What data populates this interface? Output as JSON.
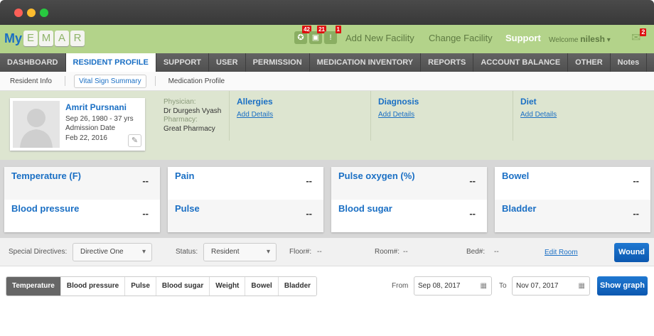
{
  "window": {
    "controls": [
      "close",
      "minimize",
      "maximize"
    ]
  },
  "header": {
    "logo_my": "My",
    "logo_letters": [
      "E",
      "M",
      "A",
      "R"
    ],
    "icons": [
      {
        "name": "runner-icon",
        "badge": "42"
      },
      {
        "name": "box-icon",
        "badge": "21"
      },
      {
        "name": "alert-list-icon",
        "badge": "1"
      }
    ],
    "add_facility": "Add New Facility",
    "change_facility": "Change Facility",
    "support": "Support",
    "welcome": "Welcome",
    "user": "nilesh",
    "mail_badge": "2"
  },
  "nav": [
    "DASHBOARD",
    "RESIDENT PROFILE",
    "SUPPORT",
    "USER",
    "PERMISSION",
    "MEDICATION INVENTORY",
    "REPORTS",
    "ACCOUNT BALANCE",
    "OTHER",
    "Notes"
  ],
  "subnav": [
    "Resident Info",
    "Vital Sign Summary",
    "Medication Profile"
  ],
  "resident": {
    "name": "Amrit Pursnani",
    "dob": "Sep 26, 1980 - 37 yrs",
    "admission_label": "Admission Date",
    "admission": "Feb 22, 2016",
    "physician_label": "Physician:",
    "physician": "Dr Durgesh Vyash",
    "pharmacy_label": "Pharmacy:",
    "pharmacy": "Great Pharmacy"
  },
  "sections": [
    {
      "title": "Allergies",
      "link": "Add Details"
    },
    {
      "title": "Diagnosis",
      "link": "Add Details"
    },
    {
      "title": "Diet",
      "link": "Add Details"
    }
  ],
  "vitals": [
    [
      {
        "label": "Temperature (F)",
        "value": "--"
      },
      {
        "label": "Blood pressure",
        "value": "--"
      }
    ],
    [
      {
        "label": "Pain",
        "value": "--"
      },
      {
        "label": "Pulse",
        "value": "--"
      }
    ],
    [
      {
        "label": "Pulse oxygen (%)",
        "value": "--"
      },
      {
        "label": "Blood sugar",
        "value": "--"
      }
    ],
    [
      {
        "label": "Bowel",
        "value": "--"
      },
      {
        "label": "Bladder",
        "value": "--"
      }
    ]
  ],
  "directives": {
    "label": "Special Directives:",
    "value": "Directive One",
    "status_label": "Status:",
    "status": "Resident",
    "floor_label": "Floor#:",
    "floor": "--",
    "room_label": "Room#:",
    "room": "--",
    "bed_label": "Bed#:",
    "bed": "--",
    "edit_room": "Edit Room",
    "wound": "Wound"
  },
  "graph": {
    "tabs": [
      "Temperature",
      "Blood pressure",
      "Pulse",
      "Blood sugar",
      "Weight",
      "Bowel",
      "Bladder"
    ],
    "active": "Temperature",
    "from_label": "From",
    "from": "Sep 08, 2017",
    "to_label": "To",
    "to": "Nov 07, 2017",
    "show": "Show graph"
  },
  "colors": {
    "accent": "#1a6fc4",
    "header_green": "#b3d38a",
    "badge_red": "#dd1111"
  }
}
